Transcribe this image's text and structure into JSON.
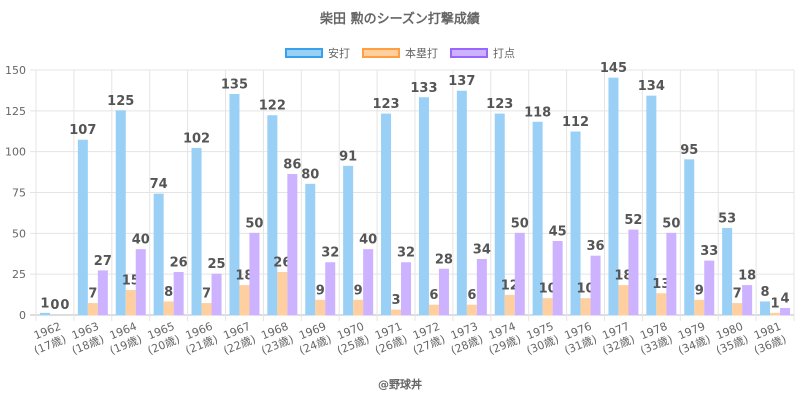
{
  "chart_data": {
    "type": "bar",
    "title": "柴田 勲のシーズン打撃成績",
    "categories": [
      [
        "1962",
        "(17歳)"
      ],
      [
        "1963",
        "(18歳)"
      ],
      [
        "1964",
        "(19歳)"
      ],
      [
        "1965",
        "(20歳)"
      ],
      [
        "1966",
        "(21歳)"
      ],
      [
        "1967",
        "(22歳)"
      ],
      [
        "1968",
        "(23歳)"
      ],
      [
        "1969",
        "(24歳)"
      ],
      [
        "1970",
        "(25歳)"
      ],
      [
        "1971",
        "(26歳)"
      ],
      [
        "1972",
        "(27歳)"
      ],
      [
        "1973",
        "(28歳)"
      ],
      [
        "1974",
        "(29歳)"
      ],
      [
        "1975",
        "(30歳)"
      ],
      [
        "1976",
        "(31歳)"
      ],
      [
        "1977",
        "(32歳)"
      ],
      [
        "1978",
        "(33歳)"
      ],
      [
        "1979",
        "(34歳)"
      ],
      [
        "1980",
        "(35歳)"
      ],
      [
        "1981",
        "(36歳)"
      ]
    ],
    "series": [
      {
        "name": "安打",
        "color": "#9ad0f5",
        "border": "#36a2eb",
        "values": [
          1,
          107,
          125,
          74,
          102,
          135,
          122,
          80,
          91,
          123,
          133,
          137,
          123,
          118,
          112,
          145,
          134,
          95,
          53,
          8
        ]
      },
      {
        "name": "本塁打",
        "color": "#ffcf9f",
        "border": "#ff9f40",
        "values": [
          0,
          7,
          15,
          8,
          7,
          18,
          26,
          9,
          9,
          3,
          6,
          6,
          12,
          10,
          10,
          18,
          13,
          9,
          7,
          1
        ]
      },
      {
        "name": "打点",
        "color": "#ccb2ff",
        "border": "#9966ff",
        "values": [
          0,
          27,
          40,
          26,
          25,
          50,
          86,
          32,
          40,
          32,
          28,
          34,
          50,
          45,
          36,
          52,
          50,
          33,
          18,
          4
        ]
      }
    ],
    "yticks": [
      0,
      25,
      50,
      75,
      100,
      125,
      150
    ],
    "ylim": [
      0,
      150
    ],
    "grid": true,
    "legend_position": "top"
  },
  "footer": "@野球丼"
}
